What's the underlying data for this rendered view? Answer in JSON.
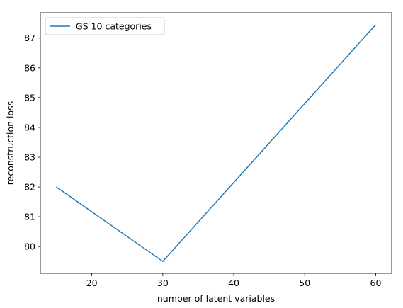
{
  "chart_data": {
    "type": "line",
    "x_label": "number of latent variables",
    "y_label": "reconstruction loss",
    "x": [
      15,
      30,
      60
    ],
    "series": [
      {
        "name": "GS 10 categories",
        "color": "#1f77b4",
        "values": [
          82.0,
          79.5,
          87.45
        ]
      }
    ],
    "xlim": [
      12.75,
      62.25
    ],
    "xticks": [
      20,
      30,
      40,
      50,
      60
    ],
    "ylim": [
      79.1,
      87.85
    ],
    "yticks": [
      80,
      81,
      82,
      83,
      84,
      85,
      86,
      87
    ],
    "grid": false,
    "legend": "upper left"
  }
}
